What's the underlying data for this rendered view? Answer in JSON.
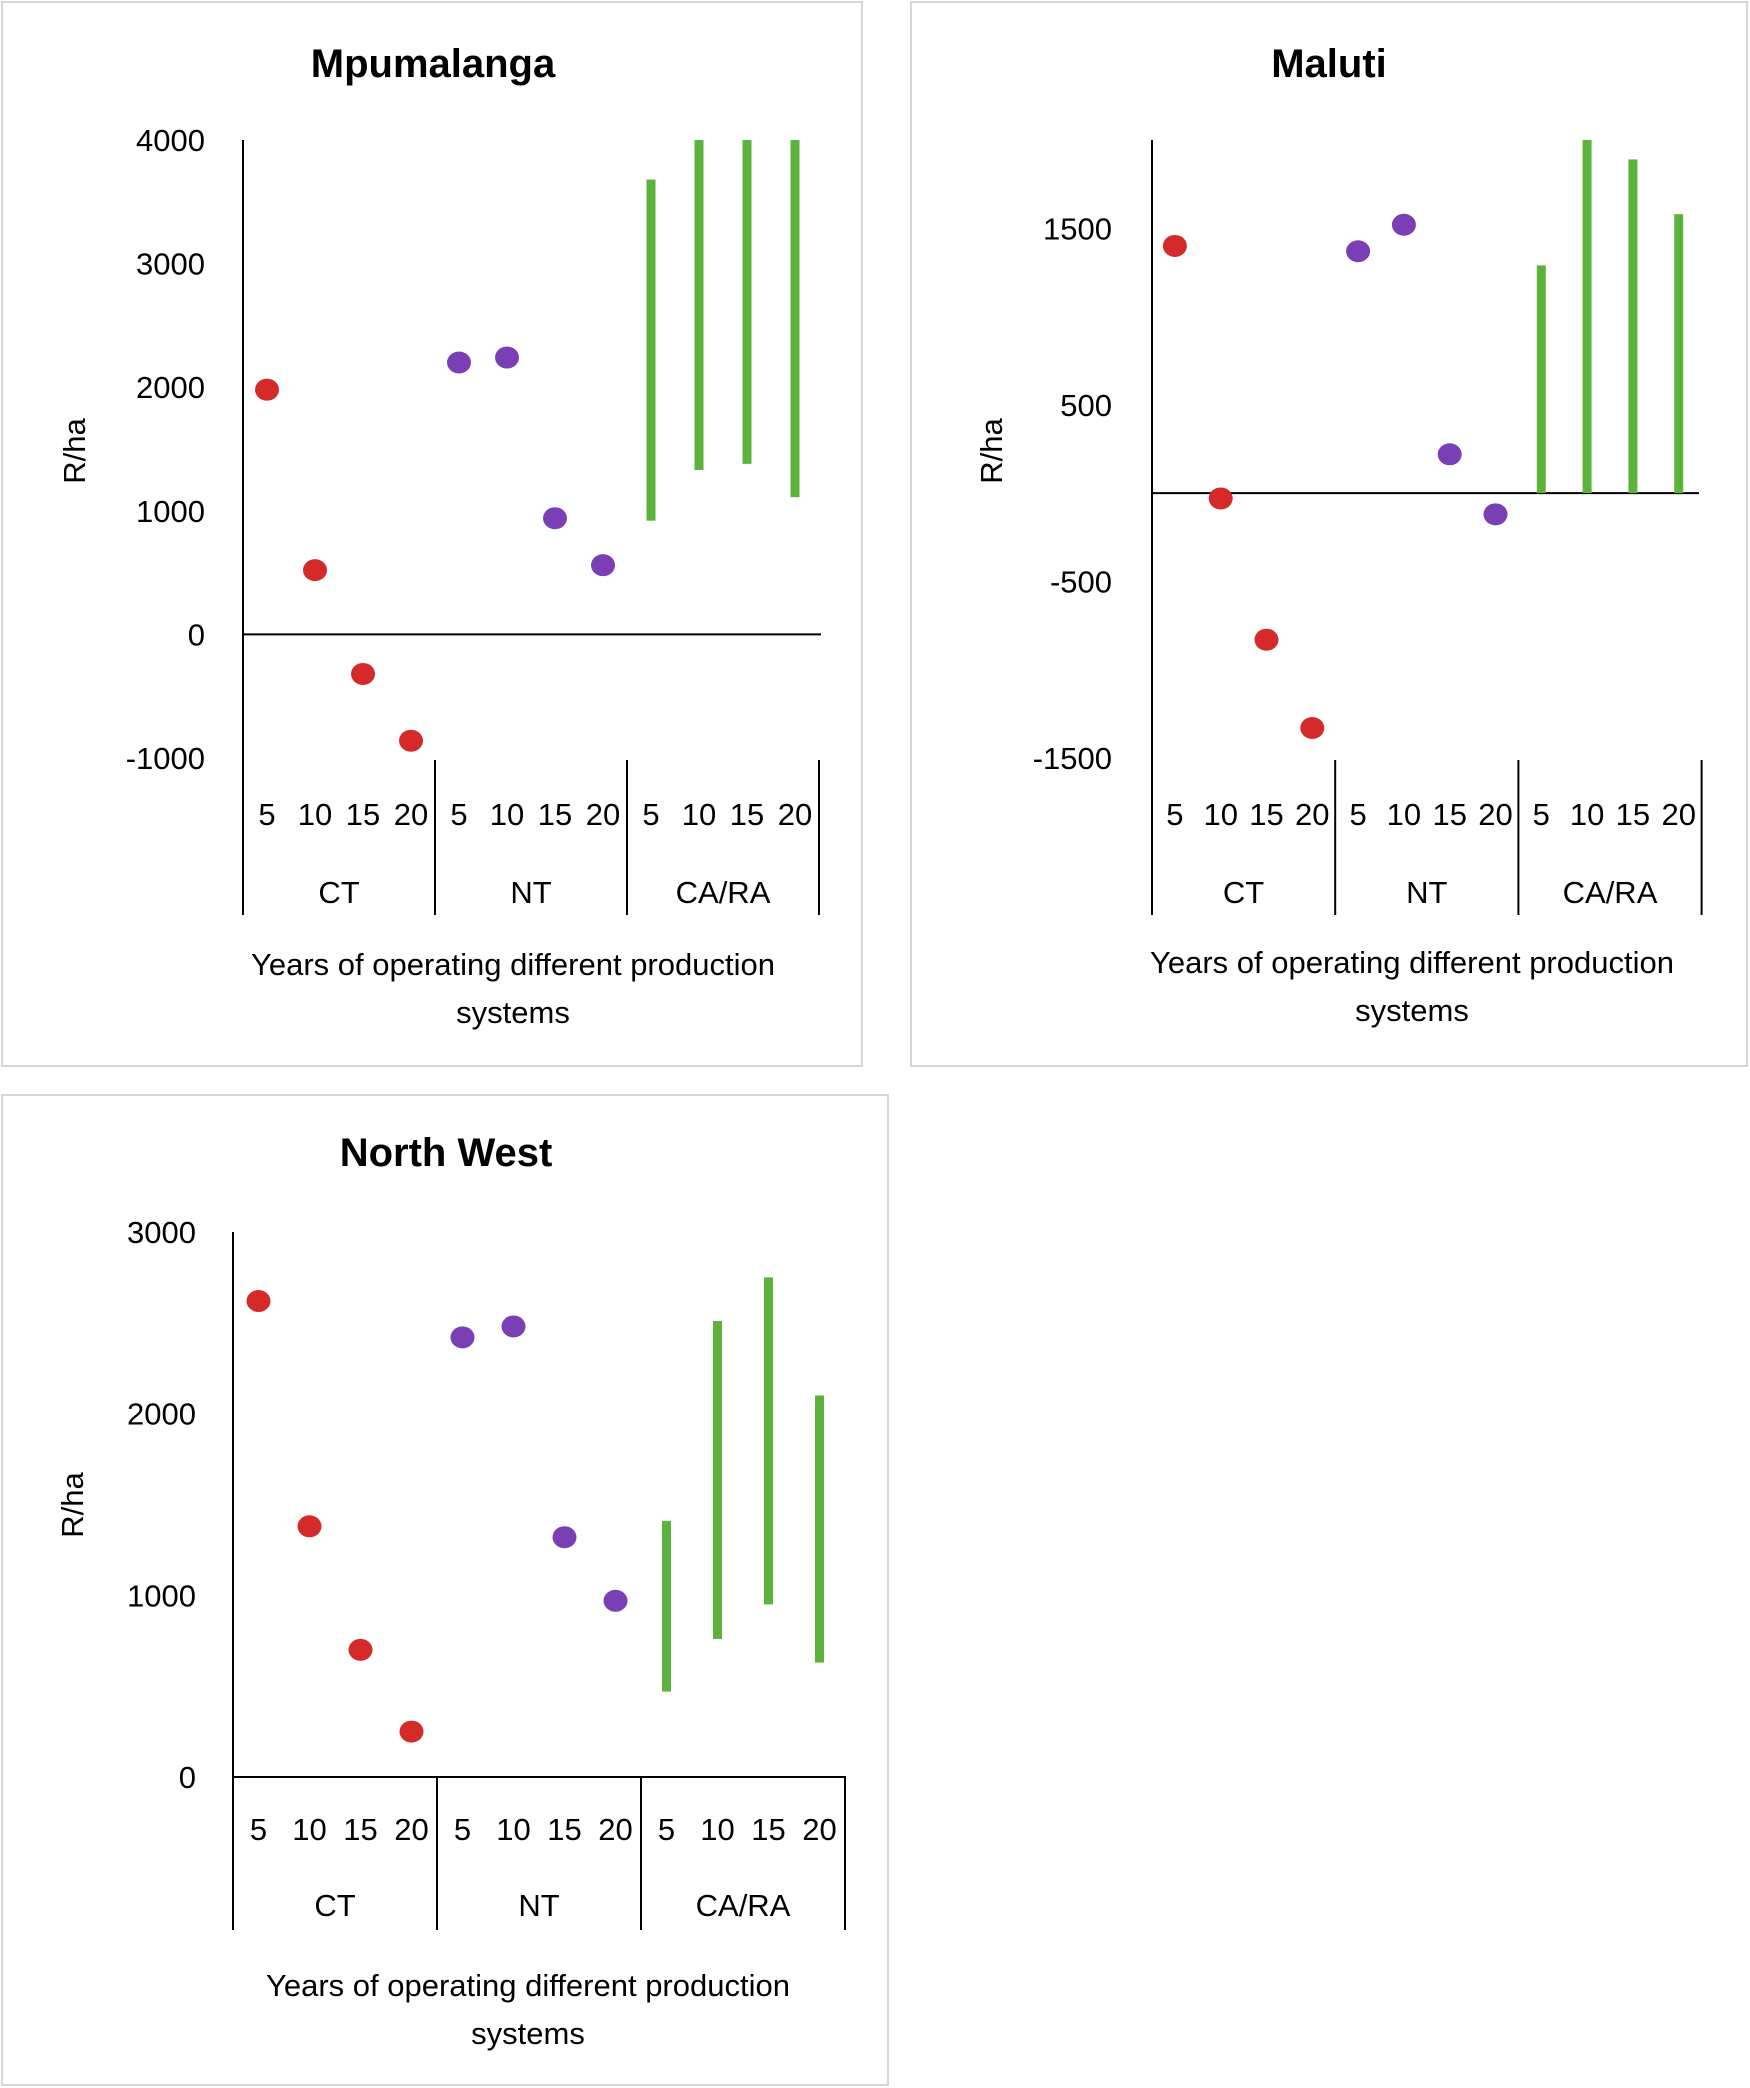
{
  "chart_data": [
    {
      "type": "scatter",
      "title": "Mpumalanga",
      "ylabel": "R/ha",
      "xlabel_line1": "Years of operating different production",
      "xlabel_line2": "systems",
      "ylim": [
        -1000,
        4000
      ],
      "yticks": [
        -1000,
        0,
        1000,
        2000,
        3000,
        4000
      ],
      "ytick_labels": [
        "-1000",
        "0",
        "1000",
        "2000",
        "3000",
        "4000"
      ],
      "groups": [
        "CT",
        "NT",
        "CA/RA"
      ],
      "years": [
        "5",
        "10",
        "15",
        "20"
      ],
      "series": [
        {
          "name": "CT",
          "kind": "point",
          "color": "#d42a2a",
          "values": [
            1980,
            520,
            -320,
            -860
          ]
        },
        {
          "name": "NT",
          "kind": "point",
          "color": "#7a3fb5",
          "values": [
            2200,
            2240,
            940,
            560
          ]
        },
        {
          "name": "CA/RA",
          "kind": "range",
          "color": "#5cb33c",
          "low": [
            920,
            1330,
            1380,
            1110
          ],
          "high": [
            3680,
            4000,
            4000,
            4000
          ]
        }
      ]
    },
    {
      "type": "scatter",
      "title": "Maluti",
      "ylabel": "R/ha",
      "xlabel_line1": "Years of operating different production",
      "xlabel_line2": "systems",
      "ylim": [
        -1500,
        2000
      ],
      "yticks": [
        -1500,
        -500,
        500,
        1500
      ],
      "ytick_labels": [
        "-1500",
        "-500",
        "500",
        "1500"
      ],
      "groups": [
        "CT",
        "NT",
        "CA/RA"
      ],
      "years": [
        "5",
        "10",
        "15",
        "20"
      ],
      "series": [
        {
          "name": "CT",
          "kind": "point",
          "color": "#d42a2a",
          "values": [
            1400,
            -30,
            -830,
            -1330
          ]
        },
        {
          "name": "NT",
          "kind": "point",
          "color": "#7a3fb5",
          "values": [
            1370,
            1520,
            220,
            -120
          ]
        },
        {
          "name": "CA/RA",
          "kind": "range",
          "color": "#5cb33c",
          "low": [
            0,
            0,
            0,
            0
          ],
          "high": [
            1290,
            2000,
            1890,
            1580
          ]
        }
      ]
    },
    {
      "type": "scatter",
      "title": "North West",
      "ylabel": "R/ha",
      "xlabel_line1": "Years of operating different production",
      "xlabel_line2": "systems",
      "ylim": [
        0,
        3000
      ],
      "yticks": [
        0,
        1000,
        2000,
        3000
      ],
      "ytick_labels": [
        "0",
        "1000",
        "2000",
        "3000"
      ],
      "groups": [
        "CT",
        "NT",
        "CA/RA"
      ],
      "years": [
        "5",
        "10",
        "15",
        "20"
      ],
      "series": [
        {
          "name": "CT",
          "kind": "point",
          "color": "#d42a2a",
          "values": [
            2620,
            1380,
            700,
            250
          ]
        },
        {
          "name": "NT",
          "kind": "point",
          "color": "#7a3fb5",
          "values": [
            2420,
            2480,
            1320,
            970
          ]
        },
        {
          "name": "CA/RA",
          "kind": "range",
          "color": "#5cb33c",
          "low": [
            470,
            760,
            950,
            630
          ],
          "high": [
            1410,
            2510,
            2750,
            2100
          ]
        }
      ]
    }
  ]
}
